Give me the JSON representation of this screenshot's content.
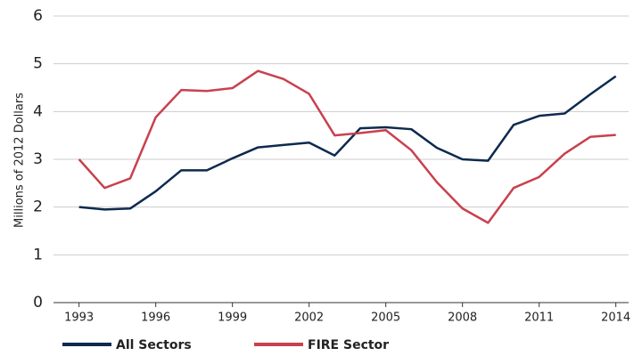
{
  "chart_data": {
    "type": "line",
    "ylabel": "Millions of 2012 Dollars",
    "x": [
      1993,
      1994,
      1995,
      1996,
      1997,
      1998,
      1999,
      2000,
      2001,
      2002,
      2003,
      2004,
      2005,
      2006,
      2007,
      2008,
      2009,
      2010,
      2011,
      2012,
      2013,
      2014
    ],
    "series": [
      {
        "name": "All Sectors",
        "color": "#0d2a4f",
        "values": [
          2.0,
          1.95,
          1.97,
          2.33,
          2.77,
          2.77,
          3.02,
          3.25,
          3.3,
          3.35,
          3.08,
          3.65,
          3.67,
          3.63,
          3.24,
          3.0,
          2.97,
          3.72,
          3.91,
          3.96,
          4.36,
          4.74
        ]
      },
      {
        "name": "FIRE Sector",
        "color": "#c8414e",
        "values": [
          3.0,
          2.4,
          2.6,
          3.88,
          4.45,
          4.43,
          4.49,
          4.85,
          4.68,
          4.37,
          3.5,
          3.55,
          3.61,
          3.19,
          2.52,
          1.97,
          1.67,
          2.4,
          2.63,
          3.12,
          3.47,
          3.51
        ]
      }
    ],
    "xlim": [
      1992,
      2014.5
    ],
    "xticks": [
      1993,
      1996,
      1999,
      2002,
      2005,
      2008,
      2011,
      2014
    ],
    "ylim": [
      0,
      6
    ],
    "yticks": [
      0,
      1,
      2,
      3,
      4,
      5,
      6
    ],
    "grid": true
  }
}
